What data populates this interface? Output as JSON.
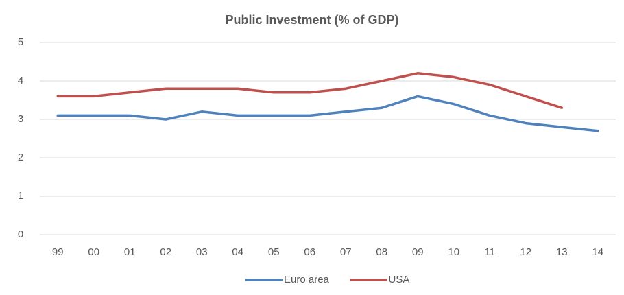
{
  "chart_data": {
    "type": "line",
    "title": "Public Investment (% of GDP)",
    "categories": [
      "99",
      "00",
      "01",
      "02",
      "03",
      "04",
      "05",
      "06",
      "07",
      "08",
      "09",
      "10",
      "11",
      "12",
      "13",
      "14"
    ],
    "series": [
      {
        "name": "Euro area",
        "color": "#4f81bd",
        "values": [
          3.1,
          3.1,
          3.1,
          3.0,
          3.2,
          3.1,
          3.1,
          3.1,
          3.2,
          3.3,
          3.6,
          3.4,
          3.1,
          2.9,
          2.8,
          2.7
        ]
      },
      {
        "name": "USA",
        "color": "#c0504d",
        "values": [
          3.6,
          3.6,
          3.7,
          3.8,
          3.8,
          3.8,
          3.7,
          3.7,
          3.8,
          4.0,
          4.2,
          4.1,
          3.9,
          3.6,
          3.3,
          null
        ]
      }
    ],
    "ylim": [
      0,
      5
    ],
    "yticks": [
      0,
      1,
      2,
      3,
      4,
      5
    ],
    "grid": true,
    "legend": "bottom"
  }
}
